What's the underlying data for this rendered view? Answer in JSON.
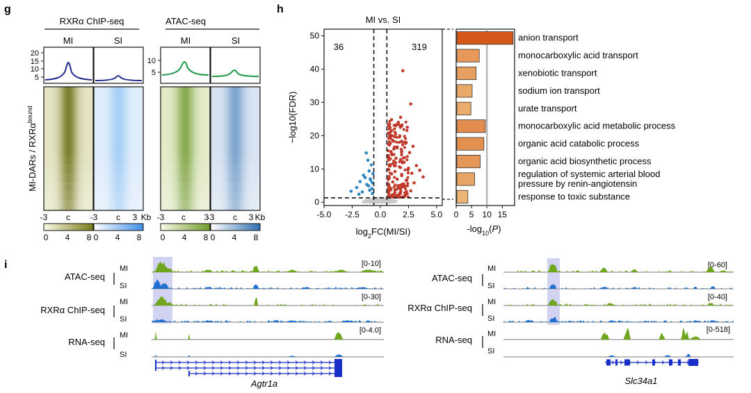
{
  "panels": {
    "g": {
      "letter": "g",
      "group_left": "RXRα ChIP-seq",
      "group_right": "ATAC-seq",
      "columns": [
        "MI",
        "SI",
        "MI",
        "SI"
      ],
      "profile_yticks_left": [
        "20",
        "15",
        "10",
        "5"
      ],
      "profile_yticks_right": [
        "10",
        "5"
      ],
      "row_label_main": "MI-DARs / RXRα",
      "row_label_sup": "bound",
      "x_ticks": [
        "-3",
        "c",
        "3"
      ],
      "x_unit": "Kb",
      "colorbar_ticks": [
        "0",
        "4",
        "8"
      ],
      "colors": {
        "chip_mi": "#7a7b19",
        "chip_si": "#5fa8ee",
        "atac_mi": "#6f9a2a",
        "atac_si": "#2f6fb0",
        "profile_chip_mi": "#1e2a8c",
        "profile_chip_si": "#1e2a8c",
        "profile_atac_mi": "#1f9a4a",
        "profile_atac_si": "#1f9a4a"
      }
    },
    "h": {
      "letter": "h",
      "colors": {
        "up": "#c0392b",
        "down": "#2e86c1",
        "ns": "#c8c8c8",
        "bar_low": "#f6e3a0",
        "bar_high": "#d7581b"
      }
    },
    "i": {
      "letter": "i",
      "left": {
        "gene": "Agtr1a",
        "tracks": [
          {
            "label": "ATAC-seq",
            "range": "[0-10]"
          },
          {
            "label": "RXRα ChIP-seq",
            "range": "[0-30]"
          },
          {
            "label": "RNA-seq",
            "range": "[0-4.0]"
          }
        ]
      },
      "right": {
        "gene": "Slc34a1",
        "tracks": [
          {
            "label": "ATAC-seq",
            "range": "[0-60]"
          },
          {
            "label": "RXRα ChIP-seq",
            "range": "[0-40]"
          },
          {
            "label": "RNA-seq",
            "range": "[0-518]"
          }
        ]
      },
      "rows": [
        "MI",
        "SI"
      ],
      "colors": {
        "mi": "#6fa61e",
        "si": "#1f6fd0",
        "highlight": "#b9b9ec",
        "gene": "#1a2fc7"
      }
    }
  },
  "chart_data": [
    {
      "type": "scatter",
      "panel": "h-volcano",
      "title": "MI vs. SI",
      "xlabel": "log2FC(MI/SI)",
      "ylabel": "-log10(FDR)",
      "xlim": [
        -5.0,
        5.5
      ],
      "ylim": [
        -1,
        52
      ],
      "x_ticks": [
        "-5.0",
        "-2.5",
        "0.0",
        "2.5",
        "5.0"
      ],
      "y_ticks": [
        "0",
        "10",
        "20",
        "30",
        "40",
        "50"
      ],
      "thresholds": {
        "log2fc": [
          -0.58,
          0.58
        ],
        "neg_log10_fdr": 1.3
      },
      "annotations": {
        "down_count": "36",
        "up_count": "319"
      },
      "series": [
        {
          "class": "down",
          "points": [
            [
              -1.8,
              6.2
            ],
            [
              -1.5,
              8.1
            ],
            [
              -1.2,
              5.3
            ],
            [
              -1.0,
              9.4
            ],
            [
              -0.9,
              7.0
            ],
            [
              -0.8,
              11.2
            ],
            [
              -1.25,
              14.8
            ],
            [
              -0.7,
              5.8
            ],
            [
              -2.1,
              4.4
            ],
            [
              -0.95,
              3.6
            ],
            [
              -1.6,
              3.1
            ],
            [
              -0.75,
              4.1
            ],
            [
              -1.1,
              12.6
            ],
            [
              -0.65,
              8.6
            ],
            [
              -0.85,
              6.6
            ],
            [
              -2.6,
              3.3
            ],
            [
              -1.35,
              7.4
            ],
            [
              -0.7,
              2.6
            ],
            [
              -1.9,
              2.4
            ],
            [
              -1.05,
              4.9
            ]
          ]
        },
        {
          "class": "up",
          "points": [
            [
              2.0,
              39.5
            ],
            [
              2.7,
              29.5
            ],
            [
              1.8,
              25.5
            ],
            [
              1.0,
              24.8
            ],
            [
              1.6,
              24.0
            ],
            [
              2.4,
              22.5
            ],
            [
              1.3,
              21.0
            ],
            [
              0.9,
              20.1
            ],
            [
              1.7,
              19.6
            ],
            [
              1.1,
              18.4
            ],
            [
              2.2,
              18.0
            ],
            [
              0.8,
              17.2
            ],
            [
              1.5,
              16.6
            ],
            [
              1.9,
              15.4
            ],
            [
              1.0,
              14.6
            ],
            [
              2.6,
              14.9
            ],
            [
              0.7,
              13.8
            ],
            [
              1.4,
              13.2
            ],
            [
              1.2,
              12.4
            ],
            [
              2.1,
              12.0
            ],
            [
              3.2,
              11.0
            ],
            [
              0.9,
              11.3
            ],
            [
              1.7,
              10.6
            ],
            [
              2.5,
              10.2
            ],
            [
              0.75,
              9.8
            ],
            [
              1.3,
              9.2
            ],
            [
              2.8,
              8.7
            ],
            [
              1.0,
              8.5
            ],
            [
              1.9,
              8.0
            ],
            [
              3.8,
              7.6
            ],
            [
              0.8,
              7.3
            ],
            [
              1.5,
              6.9
            ],
            [
              2.3,
              6.6
            ],
            [
              1.1,
              6.1
            ],
            [
              3.0,
              5.8
            ],
            [
              0.7,
              5.5
            ],
            [
              1.6,
              5.0
            ],
            [
              2.0,
              4.6
            ],
            [
              0.9,
              4.1
            ],
            [
              1.3,
              3.7
            ],
            [
              2.7,
              3.4
            ],
            [
              1.8,
              3.0
            ],
            [
              0.75,
              2.7
            ],
            [
              1.2,
              2.3
            ],
            [
              2.2,
              2.1
            ],
            [
              1.0,
              1.8
            ],
            [
              1.5,
              1.6
            ],
            [
              0.8,
              22.0
            ],
            [
              1.4,
              23.0
            ],
            [
              2.9,
              16.8
            ],
            [
              3.5,
              9.6
            ],
            [
              1.2,
              16.0
            ],
            [
              0.95,
              15.2
            ],
            [
              1.8,
              12.8
            ]
          ]
        }
      ]
    },
    {
      "type": "bar",
      "panel": "h-go-enrichment",
      "orientation": "horizontal",
      "xlabel": "-log10(P)",
      "xlim": [
        0,
        19
      ],
      "x_ticks": [
        "0",
        "5",
        "10",
        "15"
      ],
      "reference_line": 10,
      "categories": [
        "anion transport",
        "monocarboxylic acid transport",
        "xenobiotic transport",
        "sodium ion transport",
        "urate transport",
        "monocarboxylic acid metabolic process",
        "organic acid catabolic process",
        "organic acid biosynthetic process",
        "regulation of systemic arterial blood pressure by renin-angiotensin",
        "response to toxic substance"
      ],
      "values": [
        18.5,
        7.5,
        6.5,
        5.2,
        4.8,
        9.5,
        9.0,
        7.8,
        6.0,
        3.8
      ]
    }
  ]
}
